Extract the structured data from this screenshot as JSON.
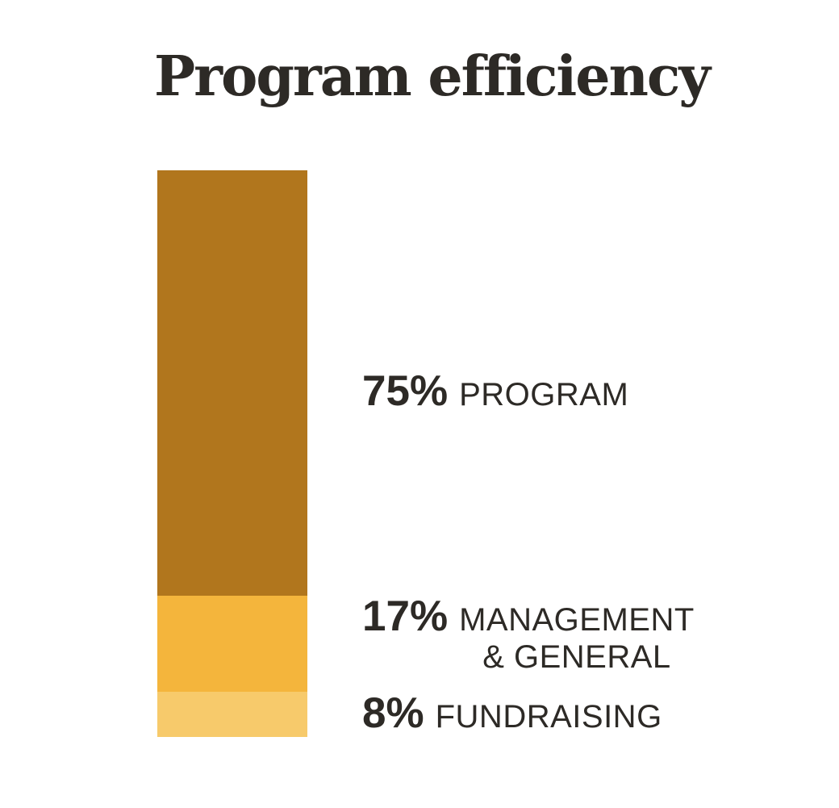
{
  "page": {
    "background_color": "#ffffff",
    "text_color": "#2d2a26"
  },
  "chart_data": {
    "type": "bar",
    "subtype": "single-column-stacked",
    "title": "Program efficiency",
    "orientation": "vertical",
    "unit": "%",
    "categories": [
      "PROGRAM",
      "MANAGEMENT & GENERAL",
      "FUNDRAISING"
    ],
    "values": [
      75,
      17,
      8
    ],
    "axes": "none",
    "grid": false,
    "legend_position": "right-of-bar",
    "segments": [
      {
        "pct": 75,
        "pct_label": "75%",
        "label": "PROGRAM",
        "color": "#b1761d"
      },
      {
        "pct": 17,
        "pct_label": "17%",
        "label": "MANAGEMENT\n& GENERAL",
        "color": "#f4b53c"
      },
      {
        "pct": 8,
        "pct_label": "8%",
        "label": "FUNDRAISING",
        "color": "#f7ca6b"
      }
    ]
  }
}
